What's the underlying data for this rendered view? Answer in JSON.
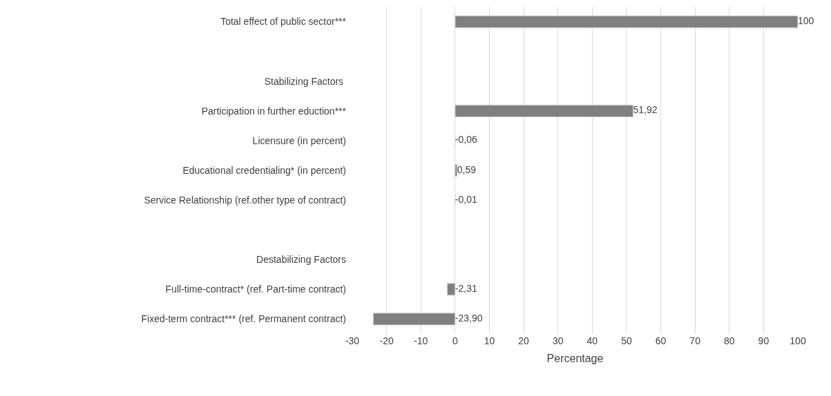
{
  "chart_data": {
    "type": "bar",
    "orientation": "horizontal",
    "categories": [
      "Total effect of public sector***",
      null,
      "Stabilizing Factors ",
      "Participation in further eduction***",
      "Licensure (in percent)",
      "Educational credentialing* (in percent)",
      "Service Relationship (ref.other type of contract)",
      null,
      "Destabilizing Factors",
      "Full-time-contract* (ref. Part-time contract)",
      "Fixed-term contract*** (ref. Permanent contract)"
    ],
    "values": [
      100,
      null,
      null,
      51.92,
      -0.06,
      0.59,
      -0.01,
      null,
      null,
      -2.31,
      -23.9
    ],
    "value_labels": [
      "100",
      null,
      null,
      "51,92",
      "-0,06",
      "0,59",
      "-0,01",
      null,
      null,
      "-2,31",
      "-23,90"
    ],
    "color": "#7f7f7f",
    "xlabel": "Percentage",
    "xlim": [
      -30,
      100
    ],
    "xticks": [
      -30,
      -20,
      -10,
      0,
      10,
      20,
      30,
      40,
      50,
      60,
      70,
      80,
      90,
      100
    ],
    "grid": "x"
  }
}
